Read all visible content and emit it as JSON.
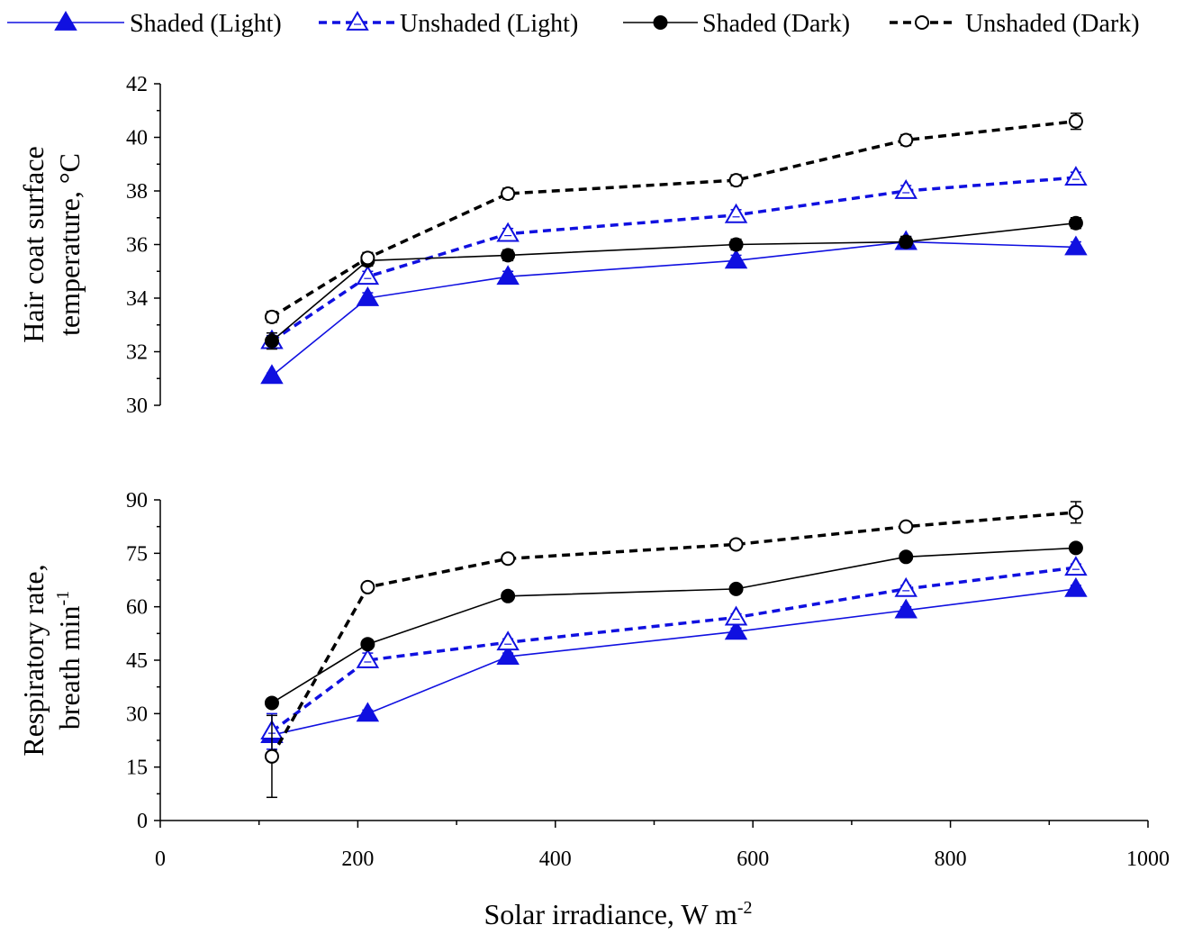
{
  "chart_data": {
    "type": "line",
    "legend": {
      "position": "top",
      "entries": [
        {
          "series_index": 0,
          "label": "Shaded (Light)"
        },
        {
          "series_index": 1,
          "label": "Unshaded (Light)"
        },
        {
          "series_index": 2,
          "label": "Shaded (Dark)"
        },
        {
          "series_index": 3,
          "label": "Unshaded (Dark)"
        }
      ]
    },
    "series_styles": [
      {
        "name": "Shaded (Light)",
        "color": "#1010E0",
        "marker": "triangle",
        "fill": "filled",
        "dash": "solid",
        "line_color": "#1010E0"
      },
      {
        "name": "Unshaded (Light)",
        "color": "#1010E0",
        "marker": "triangle",
        "fill": "open",
        "dash": "dashed",
        "line_color": "#1010E0"
      },
      {
        "name": "Shaded (Dark)",
        "color": "#000000",
        "marker": "circle",
        "fill": "filled",
        "dash": "solid",
        "line_color": "#000000"
      },
      {
        "name": "Unshaded (Dark)",
        "color": "#000000",
        "marker": "circle",
        "fill": "open",
        "dash": "dashed",
        "line_color": "#000000"
      }
    ],
    "x": [
      113,
      210,
      352,
      583,
      755,
      927
    ],
    "xlabel": "Solar irradiance, W m",
    "xlabel_superscript": "-2",
    "xlim": [
      0,
      1000
    ],
    "xticks": [
      "0",
      "200",
      "400",
      "600",
      "800",
      "1000"
    ],
    "panels": [
      {
        "id": "hair-coat",
        "ylabel_line1": "Hair coat surface",
        "ylabel_line2": "temperature, °C",
        "ylim": [
          30,
          42
        ],
        "yticks": [
          "30",
          "32",
          "34",
          "36",
          "38",
          "40",
          "42"
        ],
        "series": [
          {
            "name": "Shaded (Light)",
            "values": [
              31.1,
              34.0,
              34.8,
              35.4,
              36.1,
              35.9
            ],
            "errors": [
              0.1,
              0.2,
              0.2,
              0.2,
              0.2,
              0.2
            ]
          },
          {
            "name": "Unshaded (Light)",
            "values": [
              32.4,
              34.8,
              36.4,
              37.1,
              38.0,
              38.5
            ],
            "errors": [
              0.2,
              0.2,
              0.2,
              0.2,
              0.2,
              0.2
            ]
          },
          {
            "name": "Shaded (Dark)",
            "values": [
              32.4,
              35.4,
              35.6,
              36.0,
              36.1,
              36.8
            ],
            "errors": [
              0.3,
              0.2,
              0.2,
              0.2,
              0.2,
              0.2
            ]
          },
          {
            "name": "Unshaded (Dark)",
            "values": [
              33.3,
              35.5,
              37.9,
              38.4,
              39.9,
              40.6
            ],
            "errors": [
              0.2,
              0.2,
              0.2,
              0.2,
              0.2,
              0.3
            ]
          }
        ]
      },
      {
        "id": "respiratory-rate",
        "ylabel_line1": "Respiratory rate,",
        "ylabel_line2": "breath min",
        "ylabel_line2_superscript": "-1",
        "ylim": [
          0,
          90
        ],
        "yticks": [
          "0",
          "15",
          "30",
          "45",
          "60",
          "75",
          "90"
        ],
        "series": [
          {
            "name": "Shaded (Light)",
            "values": [
              24,
              30,
              46,
              53,
              59,
              65
            ],
            "errors": [
              1,
              1,
              1,
              1,
              1,
              1
            ]
          },
          {
            "name": "Unshaded (Light)",
            "values": [
              25,
              45,
              50,
              57,
              65,
              71
            ],
            "errors": [
              5,
              2,
              1,
              1,
              1,
              1
            ]
          },
          {
            "name": "Shaded (Dark)",
            "values": [
              33,
              49.5,
              63,
              65,
              74,
              76.5
            ],
            "errors": [
              1,
              1,
              1,
              1,
              1,
              1
            ]
          },
          {
            "name": "Unshaded (Dark)",
            "values": [
              18,
              65.5,
              73.5,
              77.5,
              82.5,
              86.5
            ],
            "errors": [
              11.5,
              1,
              1,
              1,
              1,
              3
            ]
          }
        ]
      }
    ]
  }
}
